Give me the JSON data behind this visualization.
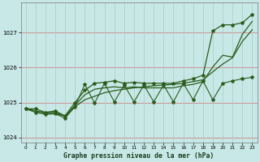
{
  "title": "Graphe pression niveau de la mer (hPa)",
  "bg_color": "#c8e8e8",
  "grid_color_h": "#cc9999",
  "grid_color_v": "#aaccbb",
  "line_color": "#2a5c1a",
  "xlim": [
    -0.5,
    23.5
  ],
  "ylim": [
    1023.85,
    1027.85
  ],
  "yticks": [
    1024,
    1025,
    1026,
    1027
  ],
  "xticks": [
    0,
    1,
    2,
    3,
    4,
    5,
    6,
    7,
    8,
    9,
    10,
    11,
    12,
    13,
    14,
    15,
    16,
    17,
    18,
    19,
    20,
    21,
    22,
    23
  ],
  "hours": [
    0,
    1,
    2,
    3,
    4,
    5,
    6,
    7,
    8,
    9,
    10,
    11,
    12,
    13,
    14,
    15,
    16,
    17,
    18,
    19,
    20,
    21,
    22,
    23
  ],
  "line_upper": [
    1024.82,
    1024.82,
    1024.72,
    1024.76,
    1024.62,
    1025.0,
    1025.35,
    1025.55,
    1025.58,
    1025.62,
    1025.55,
    1025.58,
    1025.55,
    1025.55,
    1025.55,
    1025.55,
    1025.62,
    1025.68,
    1025.78,
    1027.05,
    1027.22,
    1027.22,
    1027.28,
    1027.52
  ],
  "line_lower_smooth": [
    1024.82,
    1024.76,
    1024.7,
    1024.68,
    1024.62,
    1024.88,
    1025.08,
    1025.18,
    1025.28,
    1025.34,
    1025.38,
    1025.42,
    1025.45,
    1025.48,
    1025.5,
    1025.52,
    1025.55,
    1025.6,
    1025.65,
    1025.88,
    1026.1,
    1026.28,
    1026.75,
    1027.08
  ],
  "line_zigzag": [
    1024.82,
    1024.72,
    1024.66,
    1024.68,
    1024.55,
    1024.88,
    1025.52,
    1024.98,
    1025.55,
    1025.02,
    1025.5,
    1025.02,
    1025.5,
    1025.02,
    1025.5,
    1025.02,
    1025.55,
    1025.08,
    1025.62,
    1025.08,
    1025.55,
    1025.62,
    1025.68,
    1025.72
  ],
  "line_mid": [
    1024.82,
    1024.76,
    1024.7,
    1024.72,
    1024.6,
    1024.92,
    1025.22,
    1025.38,
    1025.42,
    1025.45,
    1025.42,
    1025.45,
    1025.42,
    1025.42,
    1025.42,
    1025.42,
    1025.48,
    1025.52,
    1025.6,
    1026.02,
    1026.35,
    1026.3,
    1026.95,
    1027.32
  ]
}
